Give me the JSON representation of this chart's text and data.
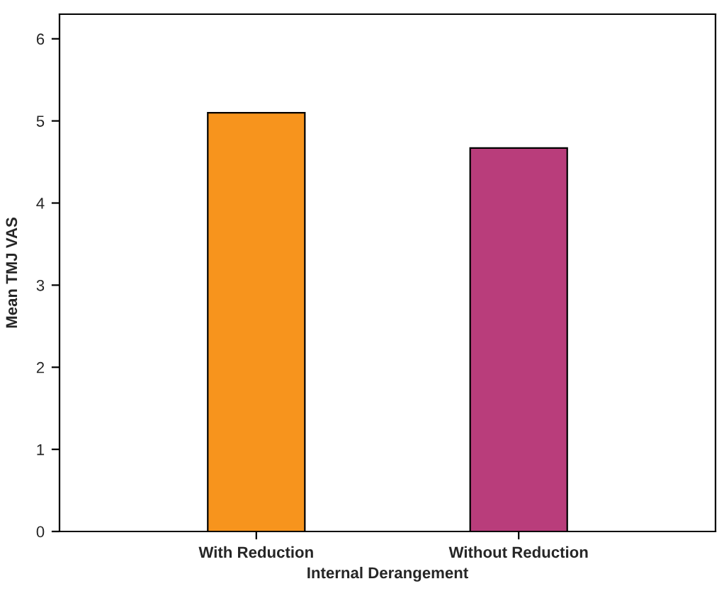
{
  "chart_data": {
    "type": "bar",
    "xlabel": "Internal Derangement",
    "ylabel": "Mean TMJ VAS",
    "categories": [
      "With Reduction",
      "Without Reduction"
    ],
    "values": [
      5.1,
      4.67
    ],
    "colors": [
      "#f7941d",
      "#b93d7b"
    ],
    "ylim": [
      0,
      6.3
    ],
    "yticks": [
      0,
      1,
      2,
      3,
      4,
      5,
      6
    ],
    "grid": false
  }
}
